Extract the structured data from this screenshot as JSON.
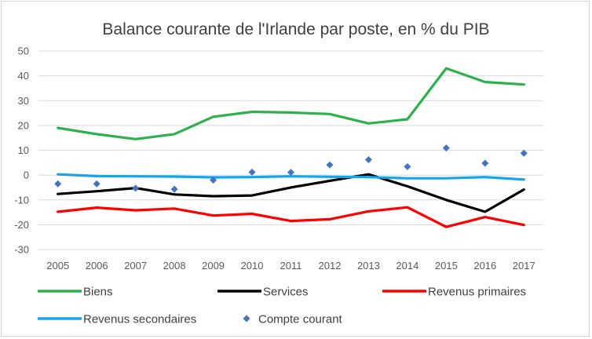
{
  "chart_data": {
    "type": "line",
    "title": "Balance courante de l'Irlande par poste, en % du PIB",
    "xlabel": "",
    "ylabel": "",
    "categories": [
      "2005",
      "2006",
      "2007",
      "2008",
      "2009",
      "2010",
      "2011",
      "2012",
      "2013",
      "2014",
      "2015",
      "2016",
      "2017"
    ],
    "ylim": [
      -30,
      50
    ],
    "yticks": [
      50,
      40,
      30,
      20,
      10,
      0,
      -10,
      -20,
      -30
    ],
    "grid": true,
    "legend_position": "bottom",
    "series": [
      {
        "name": "Biens",
        "style": "line",
        "color": "#2db14c",
        "values": [
          19,
          16.5,
          14.5,
          16.5,
          23.5,
          25.5,
          25.2,
          24.6,
          20.8,
          22.5,
          43,
          37.5,
          36.5
        ]
      },
      {
        "name": "Services",
        "style": "line",
        "color": "#000000",
        "values": [
          -7.6,
          -6.5,
          -5.2,
          -7.8,
          -8.5,
          -8.2,
          -5,
          -2.3,
          0.3,
          -4.5,
          -10,
          -14.8,
          -5.8
        ]
      },
      {
        "name": "Revenus primaires",
        "style": "line",
        "color": "#ff0000",
        "values": [
          -14.8,
          -13.1,
          -14.2,
          -13.5,
          -16.3,
          -15.6,
          -18.5,
          -17.8,
          -14.6,
          -13,
          -20.9,
          -16.9,
          -20.1
        ]
      },
      {
        "name": "Revenus secondaires",
        "style": "line",
        "color": "#14a6ea",
        "values": [
          0.3,
          -0.4,
          -0.5,
          -0.6,
          -0.9,
          -0.8,
          -0.5,
          -0.7,
          -0.8,
          -1.3,
          -1.3,
          -0.8,
          -1.8
        ]
      },
      {
        "name": "Compte courant",
        "style": "marker",
        "color": "#4472c4",
        "values": [
          -3.5,
          -3.5,
          -5.3,
          -5.7,
          -2.0,
          1.2,
          1.1,
          4.1,
          6.2,
          3.4,
          10.9,
          4.8,
          8.8
        ]
      }
    ]
  }
}
